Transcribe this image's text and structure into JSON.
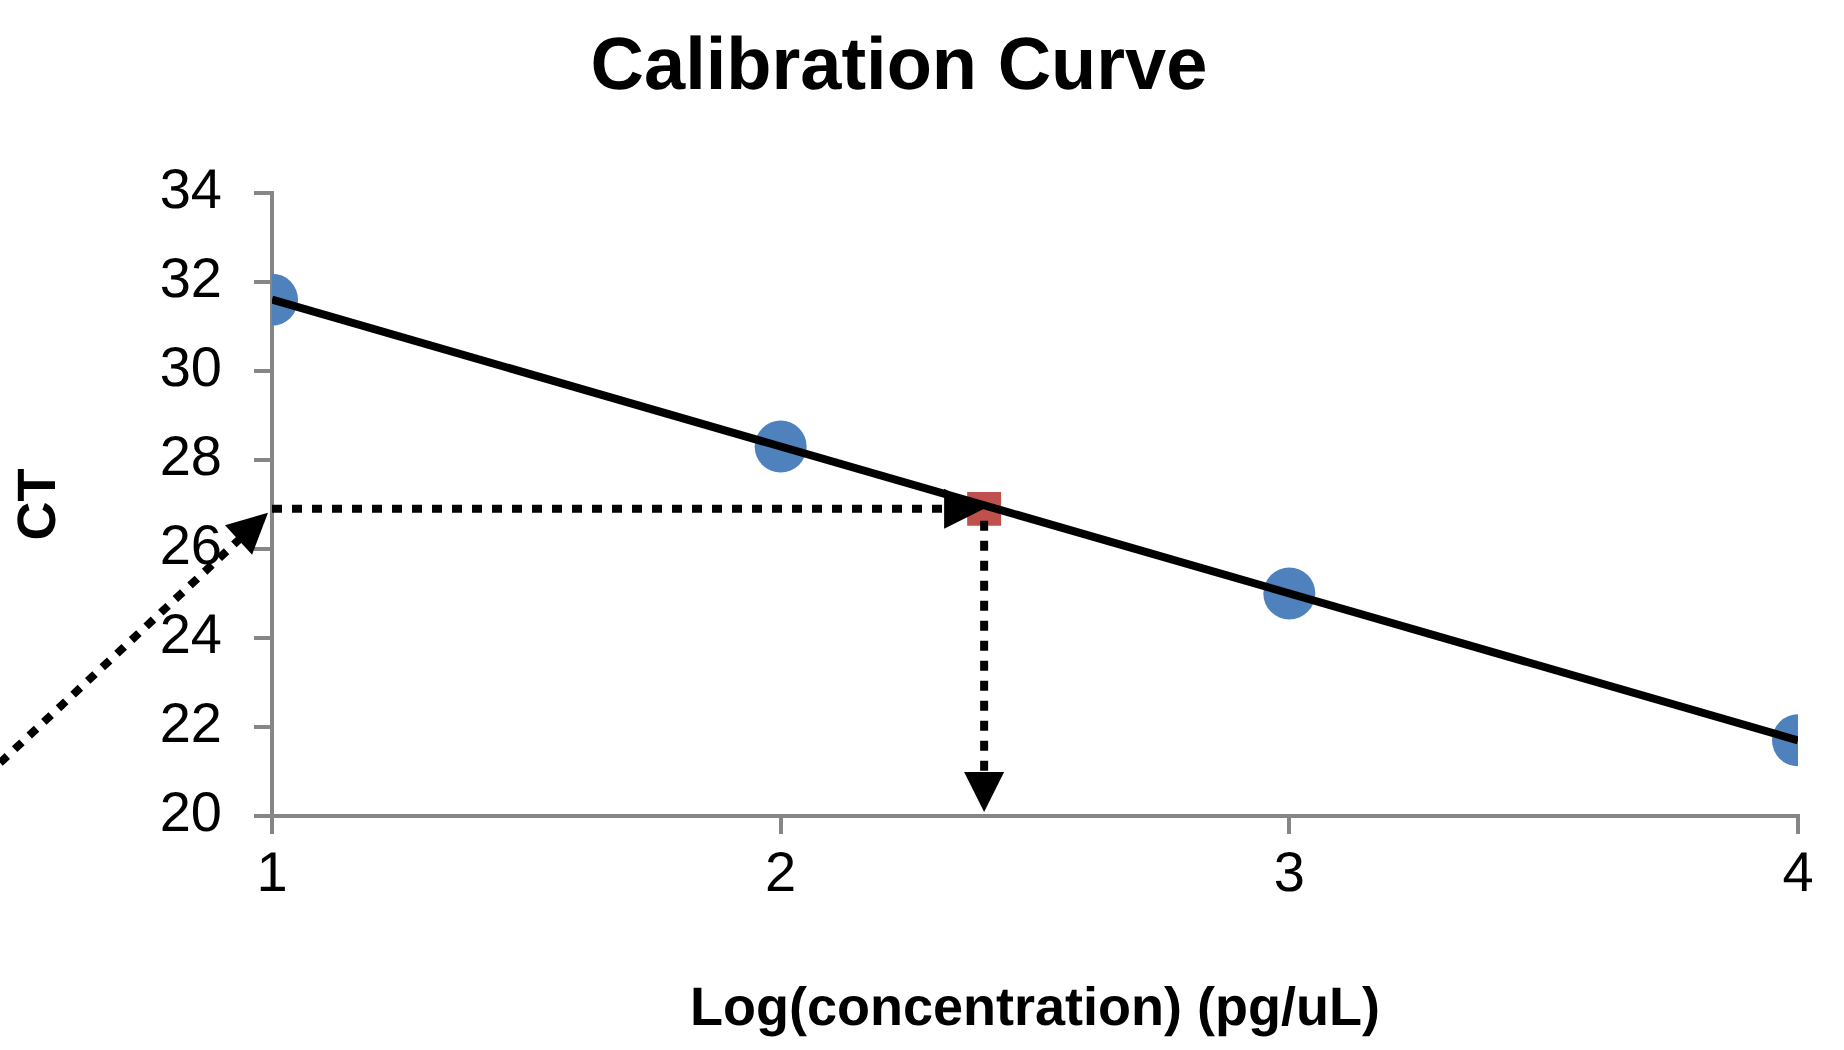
{
  "chart_data": {
    "type": "scatter",
    "title": "Calibration Curve",
    "xlabel": "Log(concentration) (pg/uL)",
    "ylabel": "CT",
    "xlim": [
      1,
      4
    ],
    "xticks": [
      1,
      2,
      3,
      4
    ],
    "ylim": [
      20,
      34
    ],
    "yticks": [
      20,
      22,
      24,
      26,
      28,
      30,
      32,
      34
    ],
    "grid": false,
    "legend": false,
    "series": [
      {
        "color": "#4f81bd",
        "marker": "circle",
        "x": [
          1,
          2,
          3,
          4
        ],
        "values": [
          31.6,
          28.3,
          25.0,
          21.7
        ]
      },
      {
        "color": "#c0504d",
        "marker": "square",
        "x": [
          2.4
        ],
        "values": [
          26.9
        ]
      },
      {
        "type": "line",
        "color": "#000000",
        "marker": "none",
        "x": [
          1,
          4
        ],
        "values": [
          31.6,
          21.7
        ]
      }
    ]
  }
}
